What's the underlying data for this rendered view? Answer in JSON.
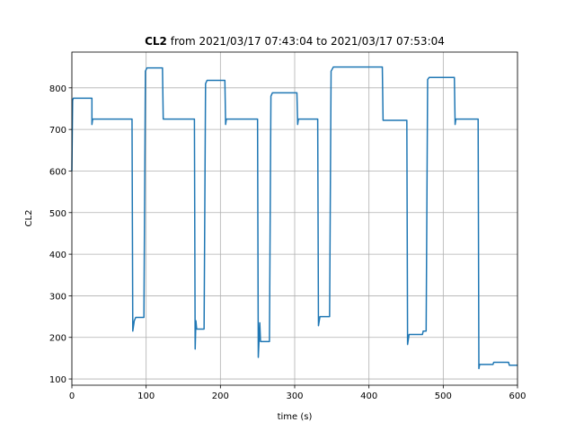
{
  "chart_data": {
    "type": "line",
    "title_bold": "CL2",
    "title": " from 2021/03/17 07:43:04 to 2021/03/17 07:53:04",
    "xlabel": "time (s)",
    "ylabel": "CL2",
    "xlim": [
      0,
      600
    ],
    "ylim": [
      85,
      886
    ],
    "xticks": [
      0,
      100,
      200,
      300,
      400,
      500,
      600
    ],
    "yticks": [
      100,
      200,
      300,
      400,
      500,
      600,
      700,
      800
    ],
    "grid": true,
    "series": [
      {
        "color": "#1f77b4",
        "x": [
          0,
          1,
          2,
          27,
          27,
          28,
          81,
          82,
          84,
          86,
          97,
          99,
          101,
          122,
          123,
          165,
          166,
          167,
          168,
          178,
          180,
          182,
          206,
          207,
          208,
          250,
          251,
          253,
          254,
          266,
          268,
          270,
          303,
          304,
          305,
          331,
          332,
          334,
          347,
          349,
          352,
          418,
          419,
          451,
          452,
          454,
          472,
          473,
          477,
          479,
          481,
          515,
          516,
          517,
          547,
          548,
          549,
          567,
          568,
          588,
          589,
          600
        ],
        "values": [
          600,
          770,
          775,
          775,
          712,
          725,
          725,
          215,
          240,
          248,
          248,
          840,
          848,
          848,
          725,
          725,
          172,
          240,
          220,
          220,
          810,
          818,
          818,
          712,
          725,
          725,
          152,
          235,
          190,
          190,
          780,
          788,
          788,
          712,
          725,
          725,
          228,
          250,
          250,
          840,
          850,
          850,
          722,
          722,
          183,
          207,
          207,
          215,
          215,
          820,
          825,
          825,
          712,
          725,
          725,
          125,
          135,
          135,
          140,
          140,
          133,
          133
        ]
      }
    ]
  }
}
